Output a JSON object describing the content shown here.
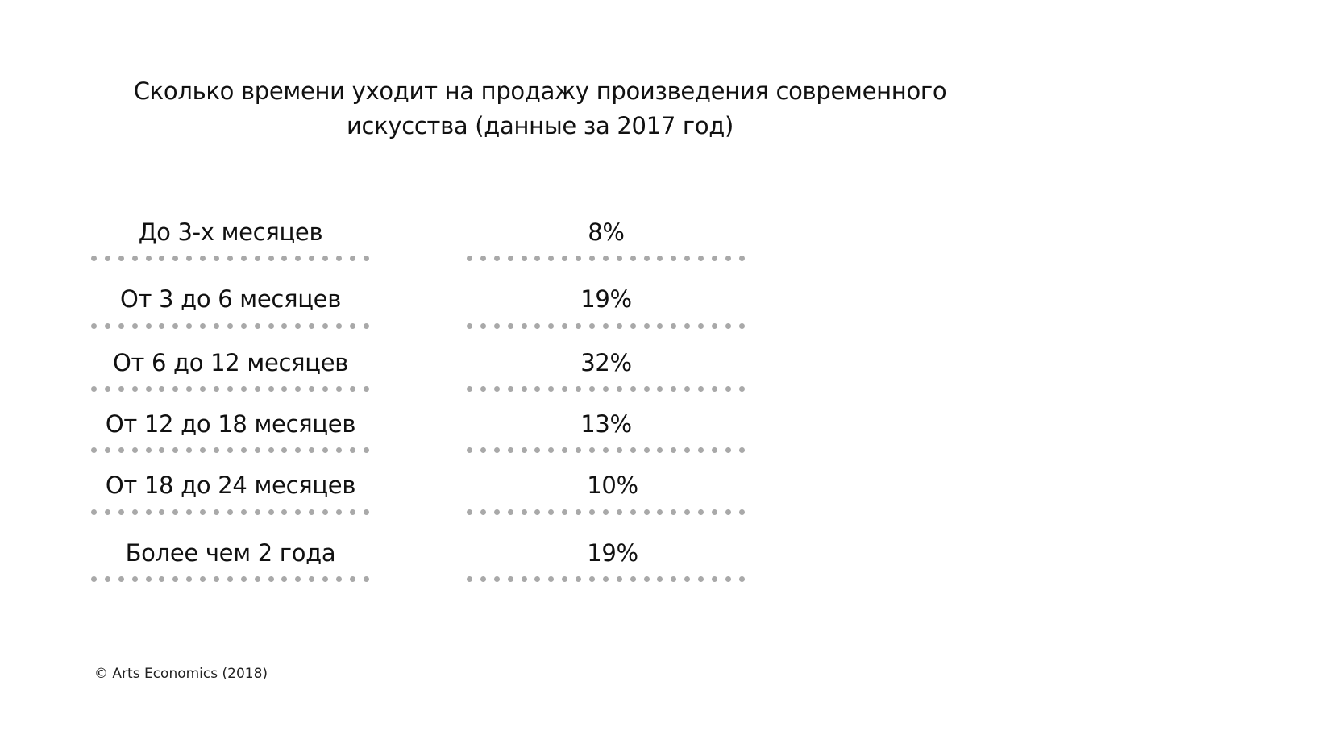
{
  "chart_data": {
    "type": "table",
    "title": "Сколько времени уходит на продажу произведения современного искусства (данные за 2017 год)",
    "title_lines": [
      "Сколько времени уходит на продажу произведения современного",
      "искусства (данные за 2017 год)"
    ],
    "rows": [
      {
        "label": "До 3-х месяцев",
        "value": "8%"
      },
      {
        "label": "От 3 до 6 месяцев",
        "value": "19%"
      },
      {
        "label": "От 6 до 12 месяцев",
        "value": "32%"
      },
      {
        "label": "От 12 до 18 месяцев",
        "value": "13%"
      },
      {
        "label": "От 18 до 24 месяцев",
        "value": "10%"
      },
      {
        "label": "Более чем 2 года",
        "value": "19%"
      }
    ],
    "values": [
      8,
      19,
      32,
      13,
      10,
      19
    ],
    "source": "© Arts Economics (2018)",
    "colors": {
      "text": "#111111",
      "dots": "#a9a9a9",
      "background": "#ffffff"
    }
  }
}
